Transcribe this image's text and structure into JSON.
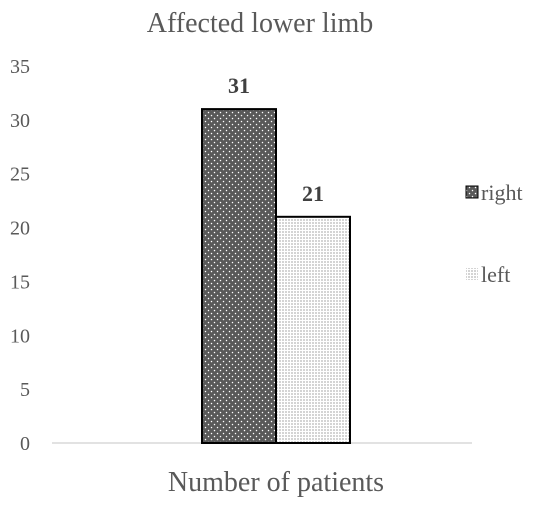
{
  "chart_data": {
    "type": "bar",
    "title": "Affected lower limb",
    "xlabel": "Number of patients",
    "ylabel": "",
    "categories": [
      "Number of patients"
    ],
    "series": [
      {
        "name": "right",
        "values": [
          31
        ],
        "fill": "#595959",
        "pattern": "dots-sparse"
      },
      {
        "name": "left",
        "values": [
          21
        ],
        "fill": "#ffffff",
        "pattern": "dots-dense"
      }
    ],
    "data_labels": [
      "31",
      "21"
    ],
    "ylim": [
      0,
      35
    ],
    "yticks": [
      "0",
      "5",
      "10",
      "15",
      "20",
      "25",
      "30",
      "35"
    ],
    "grid": false,
    "legend_position": "right"
  }
}
